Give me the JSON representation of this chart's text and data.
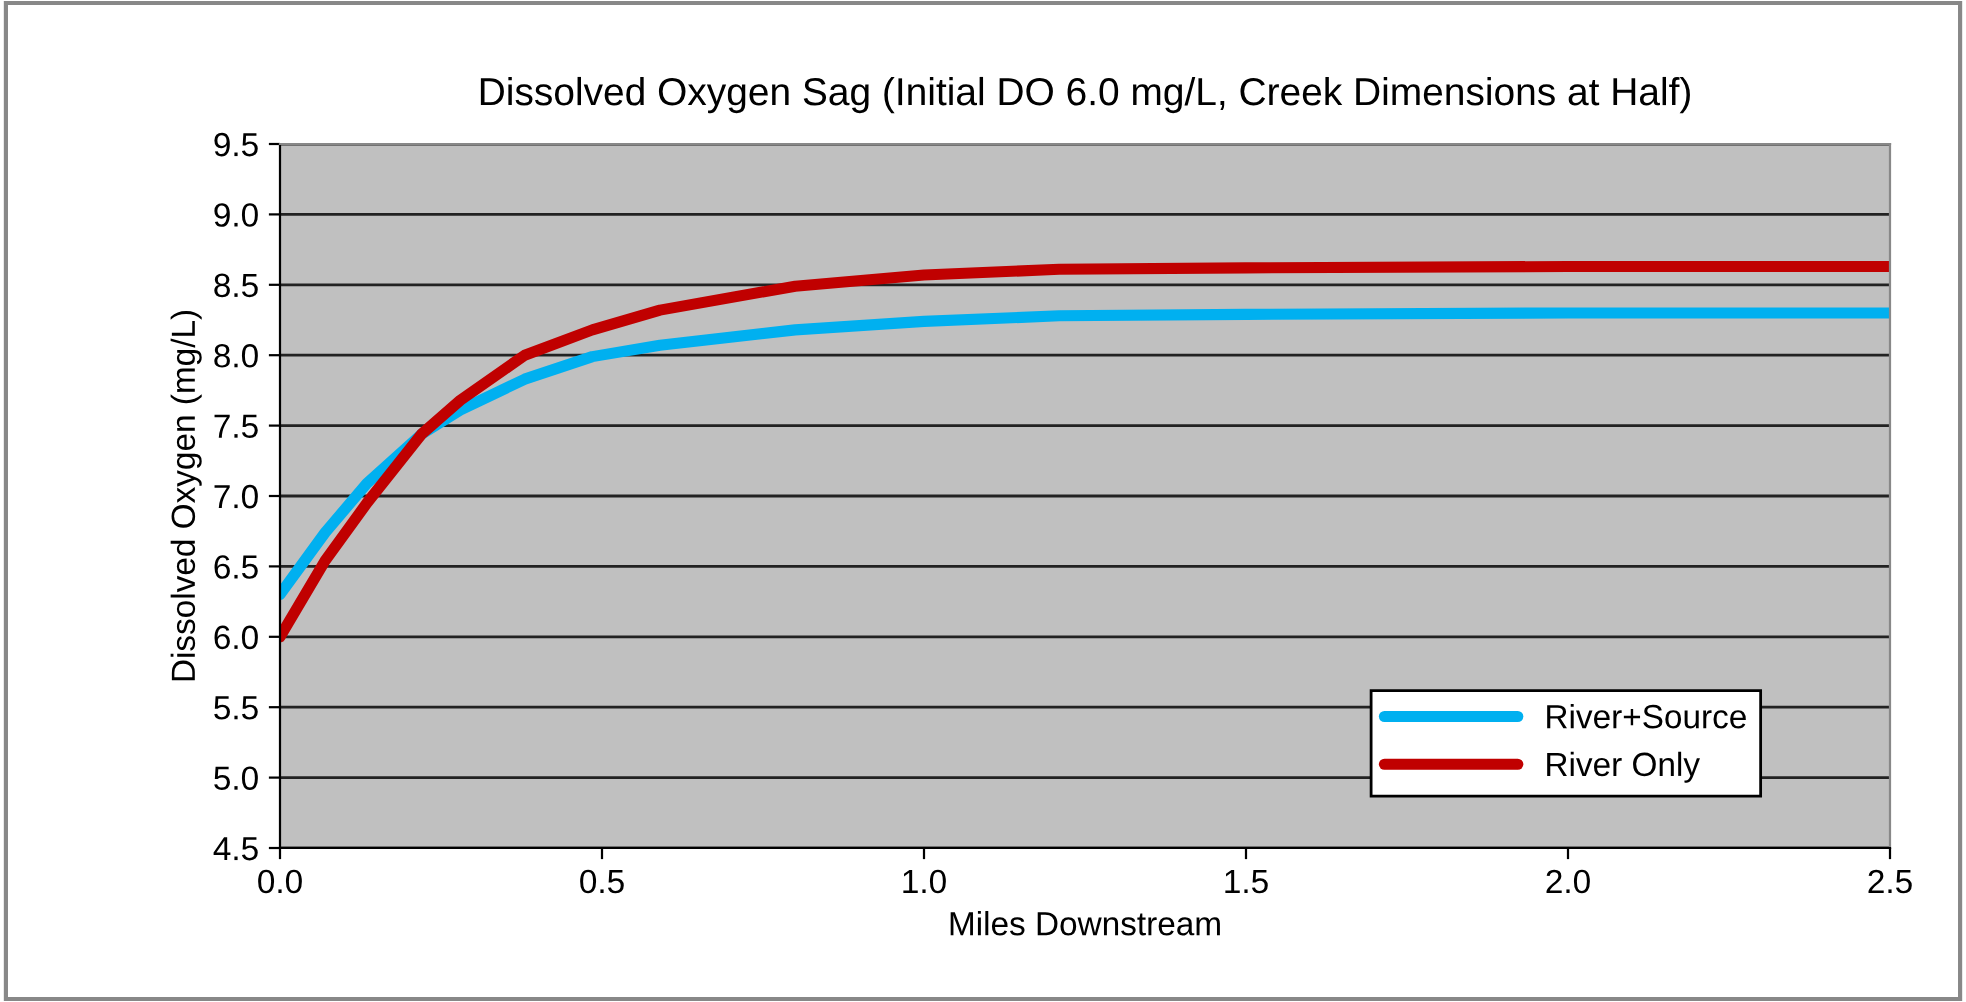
{
  "chart_data": {
    "type": "line",
    "title": "Dissolved Oxygen Sag (Initial DO 6.0 mg/L, Creek Dimensions at Half)",
    "xlabel": "Miles Downstream",
    "ylabel": "Dissolved Oxygen (mg/L)",
    "xlim": [
      0,
      2.5
    ],
    "xticks": [
      {
        "value": 0,
        "label": "0.0"
      },
      0.5,
      {
        "value": 1,
        "label": "1.0"
      },
      1.5,
      {
        "value": 2,
        "label": "2.0"
      },
      2.5
    ],
    "ylim": [
      4.5,
      9.5
    ],
    "yticks": [
      4.5,
      {
        "value": 5,
        "label": "5.0"
      },
      5.5,
      {
        "value": 6,
        "label": "6.0"
      },
      6.5,
      {
        "value": 7,
        "label": "7.0"
      },
      7.5,
      {
        "value": 8,
        "label": "8.0"
      },
      8.5,
      {
        "value": 9,
        "label": "9.0"
      },
      9.5
    ],
    "grid": "y",
    "legend": "bottom right",
    "marker": "none",
    "line_style": "solid",
    "series": [
      {
        "name": "River+Source",
        "color": "#00b0f0",
        "x": [
          0,
          0.07,
          0.135,
          0.22,
          0.28,
          0.38,
          0.485,
          0.59,
          0.8,
          1.0,
          1.21,
          1.5,
          2.0,
          2.5
        ],
        "values": [
          6.3,
          6.74,
          7.09,
          7.44,
          7.61,
          7.83,
          7.99,
          8.07,
          8.18,
          8.24,
          8.28,
          8.29,
          8.3,
          8.3
        ]
      },
      {
        "name": "River Only",
        "color": "#c00000",
        "x": [
          0,
          0.07,
          0.135,
          0.22,
          0.28,
          0.38,
          0.485,
          0.59,
          0.8,
          1.0,
          1.21,
          1.5,
          2.0,
          2.5
        ],
        "values": [
          6.0,
          6.54,
          6.95,
          7.44,
          7.68,
          8.0,
          8.18,
          8.32,
          8.49,
          8.57,
          8.61,
          8.62,
          8.63,
          8.63
        ]
      }
    ]
  }
}
